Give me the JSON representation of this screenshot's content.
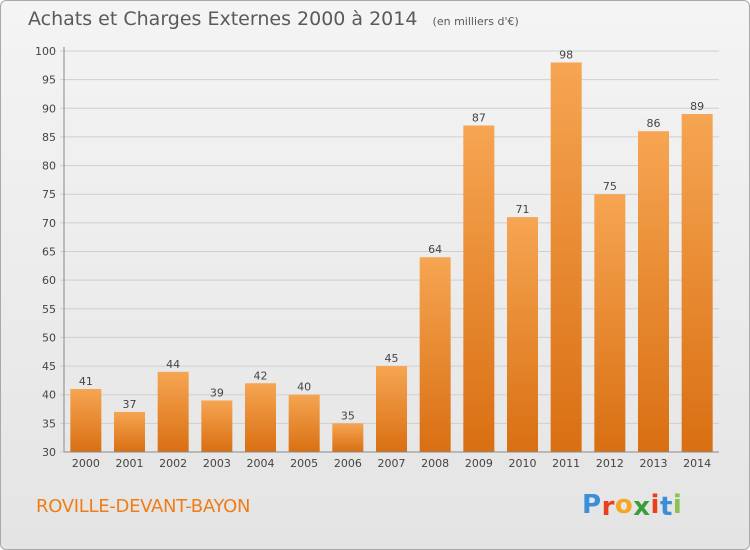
{
  "header": {
    "title": "Achats et Charges Externes 2000 à 2014",
    "subtitle": "(en milliers d'€)"
  },
  "footer": {
    "commune": "ROVILLE-DEVANT-BAYON",
    "logo_letters": [
      "P",
      "r",
      "o",
      "x",
      "i",
      "t",
      "i"
    ],
    "logo_colors": [
      "#3b8ed8",
      "#e8401c",
      "#f5a623",
      "#3a9e3a",
      "#e8401c",
      "#3b8ed8",
      "#8bc34a"
    ]
  },
  "colors": {
    "bar_top": "#f6a552",
    "bar_bottom": "#d96f12",
    "grid": "#cfcfcf",
    "text": "#444444"
  },
  "chart_data": {
    "type": "bar",
    "title": "Achats et Charges Externes 2000 à 2014",
    "subtitle": "(en milliers d'€)",
    "xlabel": "",
    "ylabel": "",
    "categories": [
      "2000",
      "2001",
      "2002",
      "2003",
      "2004",
      "2005",
      "2006",
      "2007",
      "2008",
      "2009",
      "2010",
      "2011",
      "2012",
      "2013",
      "2014"
    ],
    "values": [
      41,
      37,
      44,
      39,
      42,
      40,
      35,
      45,
      64,
      87,
      71,
      98,
      75,
      86,
      89
    ],
    "ylim": [
      30,
      100
    ],
    "yticks": [
      30,
      35,
      40,
      45,
      50,
      55,
      60,
      65,
      70,
      75,
      80,
      85,
      90,
      95,
      100
    ],
    "grid": true,
    "data_labels": true
  }
}
